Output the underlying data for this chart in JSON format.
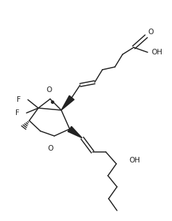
{
  "bg_color": "#ffffff",
  "line_color": "#222222",
  "text_color": "#222222",
  "figsize": [
    2.47,
    3.17
  ],
  "dpi": 100,
  "xlim": [
    0,
    247
  ],
  "ylim": [
    0,
    317
  ]
}
